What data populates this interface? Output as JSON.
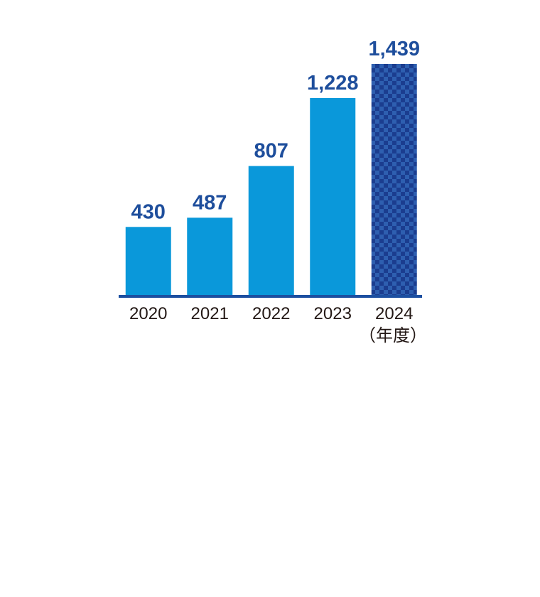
{
  "chart_data": {
    "type": "bar",
    "categories": [
      "2020",
      "2021",
      "2022",
      "2023",
      "2024"
    ],
    "x_unit": "（年度）",
    "values": [
      430,
      487,
      807,
      1228,
      1439
    ],
    "value_labels": [
      "430",
      "487",
      "807",
      "1,228",
      "1,439"
    ],
    "colors": [
      "#0a98da",
      "#0a98da",
      "#0a98da",
      "#0a98da",
      "#1b3d8f"
    ],
    "checkered": [
      false,
      false,
      false,
      false,
      true
    ],
    "axis_color": "#1c4fa0",
    "label_color": "#1e4e9c"
  }
}
